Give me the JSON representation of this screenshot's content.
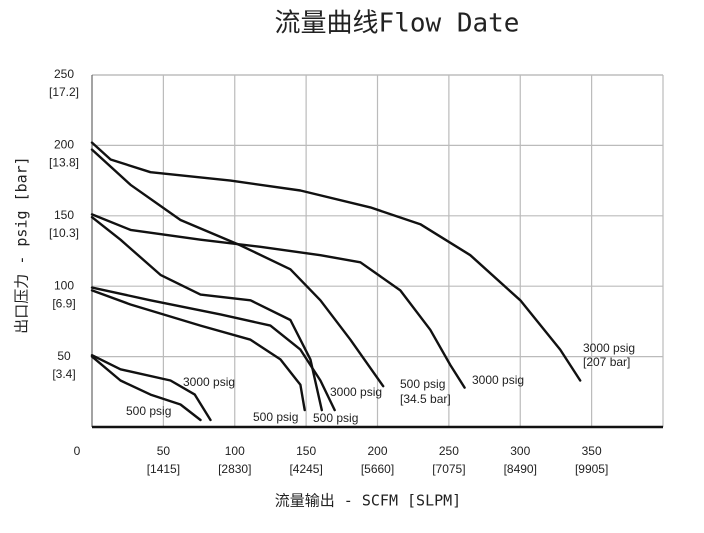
{
  "chart_data": {
    "type": "line",
    "title": "流量曲线Flow Date",
    "x_label": "流量输出 - SCFM [SLPM]",
    "y_label": "出口压力 - psig [bar]",
    "xlim": [
      0,
      400
    ],
    "ylim": [
      0,
      250
    ],
    "xticks": [
      0,
      50,
      100,
      150,
      200,
      250,
      300,
      350
    ],
    "xticks_slpm": [
      {
        "value": 50,
        "label": "[1415]"
      },
      {
        "value": 100,
        "label": "[2830]"
      },
      {
        "value": 150,
        "label": "[4245]"
      },
      {
        "value": 200,
        "label": "[5660]"
      },
      {
        "value": 250,
        "label": "[7075]"
      },
      {
        "value": 300,
        "label": "[8490]"
      },
      {
        "value": 350,
        "label": "[9905]"
      }
    ],
    "yticks": [
      50,
      100,
      150,
      200,
      250
    ],
    "yticks_bar": [
      {
        "value": 50,
        "label": "[3.4]"
      },
      {
        "value": 100,
        "label": "[6.9]"
      },
      {
        "value": 150,
        "label": "[10.3]"
      },
      {
        "value": 200,
        "label": "[13.8]"
      },
      {
        "value": 250,
        "label": "[17.2]"
      }
    ],
    "grid": true,
    "series": [
      {
        "color": "#111111",
        "x": [
          0,
          13,
          41,
          97,
          146,
          195,
          230,
          265,
          300,
          328,
          342
        ],
        "values": [
          202,
          190,
          181,
          175,
          168,
          156,
          144,
          122,
          90,
          55,
          33
        ]
      },
      {
        "color": "#111111",
        "x": [
          0,
          27,
          62,
          104,
          139,
          160,
          181,
          204
        ],
        "values": [
          197,
          172,
          147,
          129,
          112,
          90,
          62,
          29
        ]
      },
      {
        "color": "#111111",
        "x": [
          0,
          27,
          76,
          118,
          160,
          188,
          216,
          237,
          251,
          261
        ],
        "values": [
          151,
          140,
          133,
          128,
          122,
          117,
          97,
          69,
          44,
          28
        ]
      },
      {
        "color": "#111111",
        "x": [
          0,
          20,
          48,
          76,
          111,
          139,
          153,
          161
        ],
        "values": [
          149,
          133,
          108,
          94,
          90,
          76,
          48,
          12
        ]
      },
      {
        "color": "#111111",
        "x": [
          0,
          41,
          90,
          125,
          146,
          160,
          170
        ],
        "values": [
          99,
          90,
          80,
          72,
          55,
          33,
          12
        ]
      },
      {
        "color": "#111111",
        "x": [
          0,
          27,
          76,
          111,
          132,
          146,
          149
        ],
        "values": [
          97,
          87,
          72,
          62,
          48,
          30,
          12
        ]
      },
      {
        "color": "#111111",
        "x": [
          0,
          20,
          55,
          72,
          83
        ],
        "values": [
          51,
          41,
          33,
          23,
          5
        ]
      },
      {
        "color": "#111111",
        "x": [
          0,
          20,
          41,
          62,
          76
        ],
        "values": [
          50,
          33,
          23,
          16,
          5
        ]
      }
    ],
    "annotations": [
      "3000 psig",
      "[207 bar]",
      "3000 psig",
      "500 psig",
      "[34.5 bar]",
      "3000 psig",
      "500 psig",
      "500 psig",
      "3000 psig",
      "500 psig"
    ]
  }
}
